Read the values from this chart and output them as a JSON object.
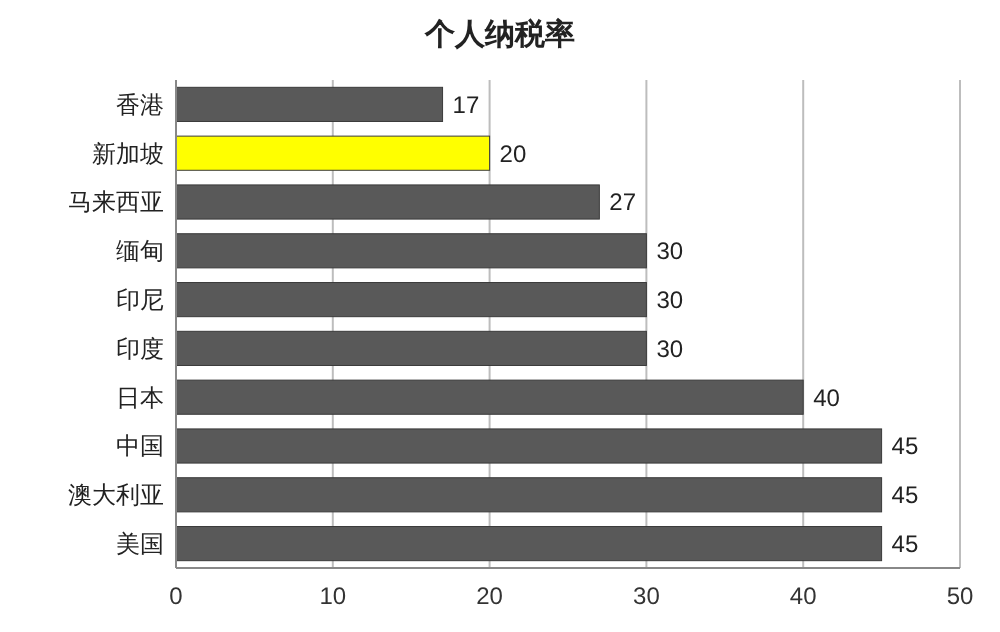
{
  "chart_data": {
    "type": "bar",
    "orientation": "horizontal",
    "title": "个人纳税率",
    "categories": [
      "香港",
      "新加坡",
      "马来西亚",
      "缅甸",
      "印尼",
      "印度",
      "日本",
      "中国",
      "澳大利亚",
      "美国"
    ],
    "values": [
      17,
      20,
      27,
      30,
      30,
      30,
      40,
      45,
      45,
      45
    ],
    "colors": [
      "#595959",
      "#ffff00",
      "#595959",
      "#595959",
      "#595959",
      "#595959",
      "#595959",
      "#595959",
      "#595959",
      "#595959"
    ],
    "xlim": [
      0,
      50
    ],
    "xticks": [
      0,
      10,
      20,
      30,
      40,
      50
    ],
    "grid": "x",
    "data_labels": true
  }
}
